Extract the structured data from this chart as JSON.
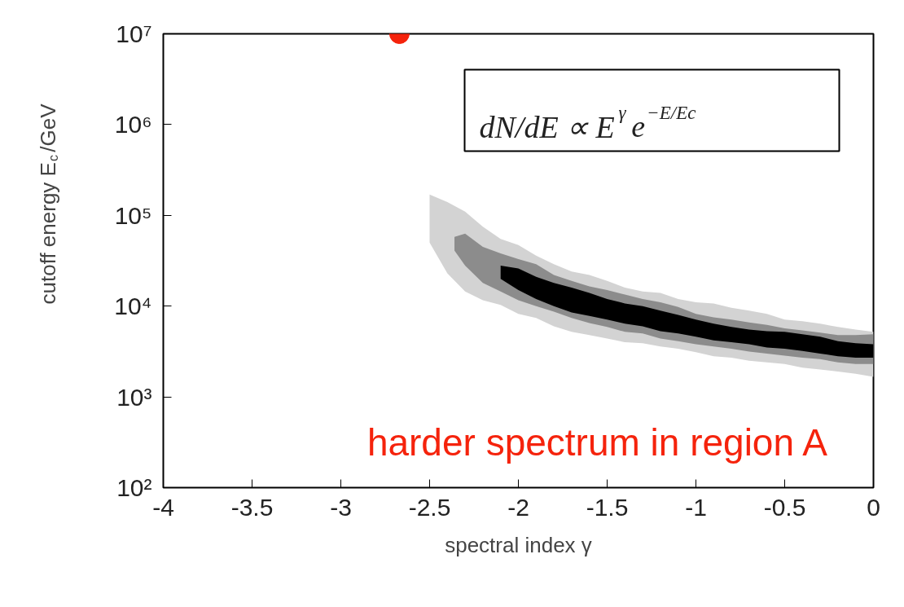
{
  "chart_data": {
    "type": "area",
    "xlabel": "spectral index γ",
    "ylabel": "cutoff energy E$_{c}$/GeV",
    "log": "y",
    "grid": false,
    "xlim": [
      -4,
      0
    ],
    "xticks": [
      -4,
      -3.5,
      -3,
      -2.5,
      -2,
      -1.5,
      -1,
      -0.5,
      0
    ],
    "ylim": [
      100,
      10000000
    ],
    "yticks": [
      {
        "value": 100,
        "label": "10²"
      },
      {
        "value": 1000,
        "label": "10³"
      },
      {
        "value": 10000,
        "label": "10⁴"
      },
      {
        "value": 100000,
        "label": "10⁵"
      },
      {
        "value": 1000000,
        "label": "10⁶"
      },
      {
        "value": 10000000,
        "label": "10⁷"
      }
    ],
    "series": [
      {
        "color": "#d3d3d3",
        "x": [
          -2.5,
          -2.4,
          -2.3,
          -2.2,
          -2.1,
          -2.0,
          -1.9,
          -1.8,
          -1.7,
          -1.6,
          -1.5,
          -1.4,
          -1.3,
          -1.2,
          -1.1,
          -1.0,
          -0.9,
          -0.8,
          -0.7,
          -0.6,
          -0.5,
          -0.4,
          -0.3,
          -0.2,
          -0.1,
          0,
          0,
          -0.1,
          -0.2,
          -0.3,
          -0.4,
          -0.5,
          -0.6,
          -0.7,
          -0.8,
          -0.9,
          -1.0,
          -1.1,
          -1.2,
          -1.3,
          -1.4,
          -1.5,
          -1.6,
          -1.7,
          -1.8,
          -1.9,
          -2.0,
          -2.1,
          -2.2,
          -2.3,
          -2.4,
          -2.5
        ],
        "values": [
          170000,
          140000,
          110000,
          75000,
          55000,
          47000,
          36000,
          29000,
          24000,
          22000,
          19000,
          16000,
          14500,
          14000,
          12000,
          11000,
          10700,
          9600,
          8900,
          8200,
          7100,
          6800,
          6400,
          5900,
          5500,
          5200,
          1660,
          1800,
          1900,
          2000,
          2100,
          2300,
          2400,
          2500,
          2700,
          2800,
          3100,
          3400,
          3600,
          3900,
          4000,
          4400,
          4800,
          5200,
          6000,
          7400,
          8200,
          10300,
          11600,
          14500,
          23000,
          50000
        ]
      },
      {
        "color": "#8c8c8c",
        "x": [
          -2.36,
          -2.3,
          -2.2,
          -2.1,
          -2.0,
          -1.9,
          -1.8,
          -1.7,
          -1.6,
          -1.5,
          -1.4,
          -1.3,
          -1.2,
          -1.1,
          -1.0,
          -0.9,
          -0.8,
          -0.7,
          -0.6,
          -0.5,
          -0.4,
          -0.3,
          -0.2,
          -0.1,
          0,
          0,
          -0.1,
          -0.2,
          -0.3,
          -0.4,
          -0.5,
          -0.6,
          -0.7,
          -0.8,
          -0.9,
          -1.0,
          -1.1,
          -1.2,
          -1.3,
          -1.4,
          -1.5,
          -1.6,
          -1.7,
          -1.8,
          -1.9,
          -2.0,
          -2.1,
          -2.2,
          -2.3,
          -2.36
        ],
        "values": [
          58000,
          63000,
          45000,
          38000,
          33000,
          29000,
          22000,
          19000,
          16500,
          15000,
          13400,
          12000,
          11000,
          9800,
          8200,
          7500,
          7100,
          6600,
          6200,
          5700,
          5400,
          5100,
          4800,
          4800,
          4900,
          2300,
          2300,
          2400,
          2600,
          2700,
          2850,
          3000,
          3150,
          3400,
          3600,
          3800,
          4100,
          4400,
          5000,
          5200,
          5900,
          6500,
          7400,
          8700,
          10000,
          11600,
          14500,
          18000,
          28000,
          41000
        ]
      },
      {
        "color": "#000000",
        "x": [
          -2.1,
          -2.0,
          -1.9,
          -1.8,
          -1.7,
          -1.6,
          -1.5,
          -1.4,
          -1.3,
          -1.2,
          -1.1,
          -1.0,
          -0.9,
          -0.8,
          -0.7,
          -0.6,
          -0.5,
          -0.4,
          -0.3,
          -0.2,
          -0.1,
          0,
          0,
          -0.1,
          -0.2,
          -0.3,
          -0.4,
          -0.5,
          -0.6,
          -0.7,
          -0.8,
          -0.9,
          -1.0,
          -1.1,
          -1.2,
          -1.3,
          -1.4,
          -1.5,
          -1.6,
          -1.7,
          -1.8,
          -1.9,
          -2.0,
          -2.1
        ],
        "values": [
          28000,
          26000,
          21000,
          18000,
          16000,
          14000,
          12000,
          10700,
          10000,
          8900,
          8000,
          7100,
          6400,
          5900,
          5500,
          5300,
          5200,
          4900,
          4600,
          4100,
          3900,
          3800,
          2700,
          2700,
          2800,
          3000,
          3200,
          3400,
          3500,
          3800,
          4000,
          4200,
          4600,
          5000,
          5300,
          6000,
          6400,
          7100,
          7800,
          8500,
          10000,
          12000,
          15000,
          20000
        ]
      },
      {
        "type": "scatter",
        "color": "#f5230c",
        "marker": "circle",
        "x": [
          -2.67
        ],
        "values": [
          10000000
        ]
      }
    ],
    "annotations": [
      "dN/dE ∝ E$^{γ}$e$^{−E/Ec}$",
      "harder spectrum in region A"
    ]
  }
}
